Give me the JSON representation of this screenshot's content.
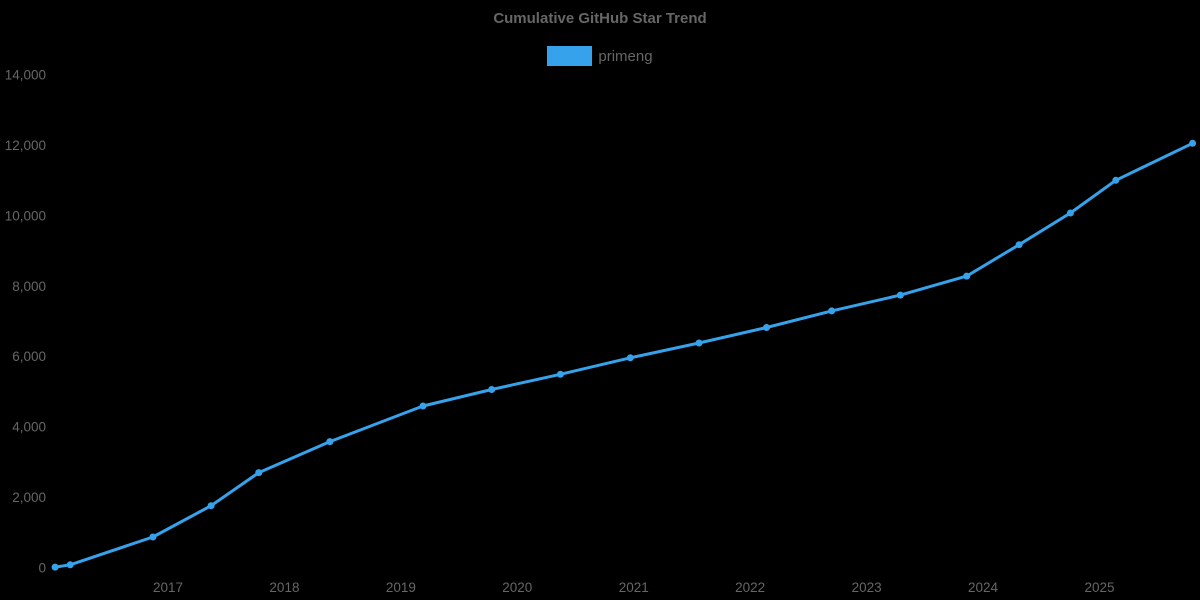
{
  "title": "Cumulative GitHub Star Trend",
  "legend": {
    "items": [
      {
        "label": "primeng",
        "color": "#36A2EB"
      }
    ]
  },
  "colors": {
    "background": "#000000",
    "text": "#666666",
    "series_blue": "#36A2EB"
  },
  "chart_data": {
    "type": "line",
    "title": "Cumulative GitHub Star Trend",
    "xlabel": "",
    "ylabel": "",
    "grid": false,
    "legend_position": "top",
    "series": [
      {
        "name": "primeng",
        "color": "#36A2EB",
        "marker": "circle",
        "x": [
          2016.03,
          2016.16,
          2016.87,
          2017.37,
          2017.78,
          2018.39,
          2019.19,
          2019.78,
          2020.37,
          2020.97,
          2021.56,
          2022.14,
          2022.7,
          2023.29,
          2023.86,
          2024.31,
          2024.75,
          2025.14,
          2025.8
        ],
        "y": [
          25,
          90,
          880,
          1770,
          2710,
          3590,
          4600,
          5070,
          5500,
          5970,
          6390,
          6830,
          7300,
          7750,
          8290,
          9180,
          10080,
          11010,
          12060
        ]
      }
    ],
    "xlim": [
      2016.0,
      2025.87
    ],
    "ylim": [
      0,
      14000
    ],
    "x_ticks": [
      2017,
      2018,
      2019,
      2020,
      2021,
      2022,
      2023,
      2024,
      2025
    ],
    "x_tick_labels": [
      "2017",
      "2018",
      "2019",
      "2020",
      "2021",
      "2022",
      "2023",
      "2024",
      "2025"
    ],
    "y_ticks": [
      0,
      2000,
      4000,
      6000,
      8000,
      10000,
      12000,
      14000
    ],
    "y_tick_labels": [
      "0",
      "2,000",
      "4,000",
      "6,000",
      "8,000",
      "10,000",
      "12,000",
      "14,000"
    ]
  }
}
